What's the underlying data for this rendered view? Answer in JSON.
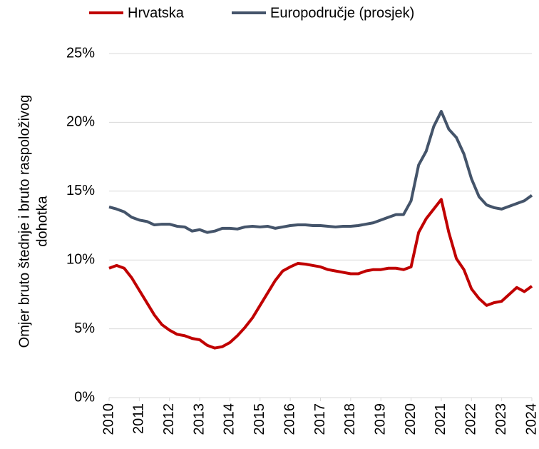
{
  "chart_data": {
    "type": "line",
    "ylabel": [
      "Omjer bruto štednje i bruto raspoloživog",
      "dohotka"
    ],
    "x": [
      2010,
      2010.25,
      2010.5,
      2010.75,
      2011,
      2011.25,
      2011.5,
      2011.75,
      2012,
      2012.25,
      2012.5,
      2012.75,
      2013,
      2013.25,
      2013.5,
      2013.75,
      2014,
      2014.25,
      2014.5,
      2014.75,
      2015,
      2015.25,
      2015.5,
      2015.75,
      2016,
      2016.25,
      2016.5,
      2016.75,
      2017,
      2017.25,
      2017.5,
      2017.75,
      2018,
      2018.25,
      2018.5,
      2018.75,
      2019,
      2019.25,
      2019.5,
      2019.75,
      2020,
      2020.25,
      2020.5,
      2020.75,
      2021,
      2021.25,
      2021.5,
      2021.75,
      2022,
      2022.25,
      2022.5,
      2022.75,
      2023,
      2023.25,
      2023.5,
      2023.75,
      2024
    ],
    "series": [
      {
        "name": "Hrvatska",
        "color": "#c00000",
        "values": [
          9.4,
          9.6,
          9.4,
          8.7,
          7.8,
          6.9,
          6.0,
          5.3,
          4.9,
          4.6,
          4.5,
          4.3,
          4.2,
          3.8,
          3.6,
          3.7,
          4.0,
          4.5,
          5.1,
          5.8,
          6.7,
          7.6,
          8.5,
          9.2,
          9.5,
          9.75,
          9.7,
          9.6,
          9.5,
          9.3,
          9.2,
          9.1,
          9.0,
          9.0,
          9.2,
          9.3,
          9.3,
          9.4,
          9.4,
          9.3,
          9.5,
          12.0,
          13.0,
          13.7,
          14.4,
          12.0,
          10.1,
          9.3,
          7.9,
          7.2,
          6.7,
          6.9,
          7.0,
          7.5,
          8.0,
          7.7,
          8.1
        ]
      },
      {
        "name": "Europodručje (prosjek)",
        "color": "#44546a",
        "values": [
          13.85,
          13.7,
          13.5,
          13.1,
          12.9,
          12.8,
          12.55,
          12.6,
          12.6,
          12.45,
          12.4,
          12.1,
          12.2,
          12.0,
          12.1,
          12.3,
          12.3,
          12.25,
          12.4,
          12.45,
          12.4,
          12.45,
          12.3,
          12.4,
          12.5,
          12.55,
          12.55,
          12.5,
          12.5,
          12.45,
          12.4,
          12.45,
          12.45,
          12.5,
          12.6,
          12.7,
          12.9,
          13.1,
          13.3,
          13.3,
          14.3,
          16.9,
          17.9,
          19.7,
          20.8,
          19.5,
          18.9,
          17.7,
          15.9,
          14.6,
          14.0,
          13.8,
          13.7,
          13.9,
          14.1,
          14.3,
          14.7
        ]
      }
    ],
    "xlim": [
      2010,
      2024
    ],
    "xticks": [
      2010,
      2011,
      2012,
      2013,
      2014,
      2015,
      2016,
      2017,
      2018,
      2019,
      2020,
      2021,
      2022,
      2023,
      2024
    ],
    "ylim": [
      0,
      25
    ],
    "yticks": [
      {
        "value": 0,
        "label": "0%"
      },
      {
        "value": 5,
        "label": "5%"
      },
      {
        "value": 10,
        "label": "10%"
      },
      {
        "value": 15,
        "label": "15%"
      },
      {
        "value": 20,
        "label": "20%"
      },
      {
        "value": 25,
        "label": "25%"
      }
    ],
    "grid": true,
    "legend": "top"
  }
}
